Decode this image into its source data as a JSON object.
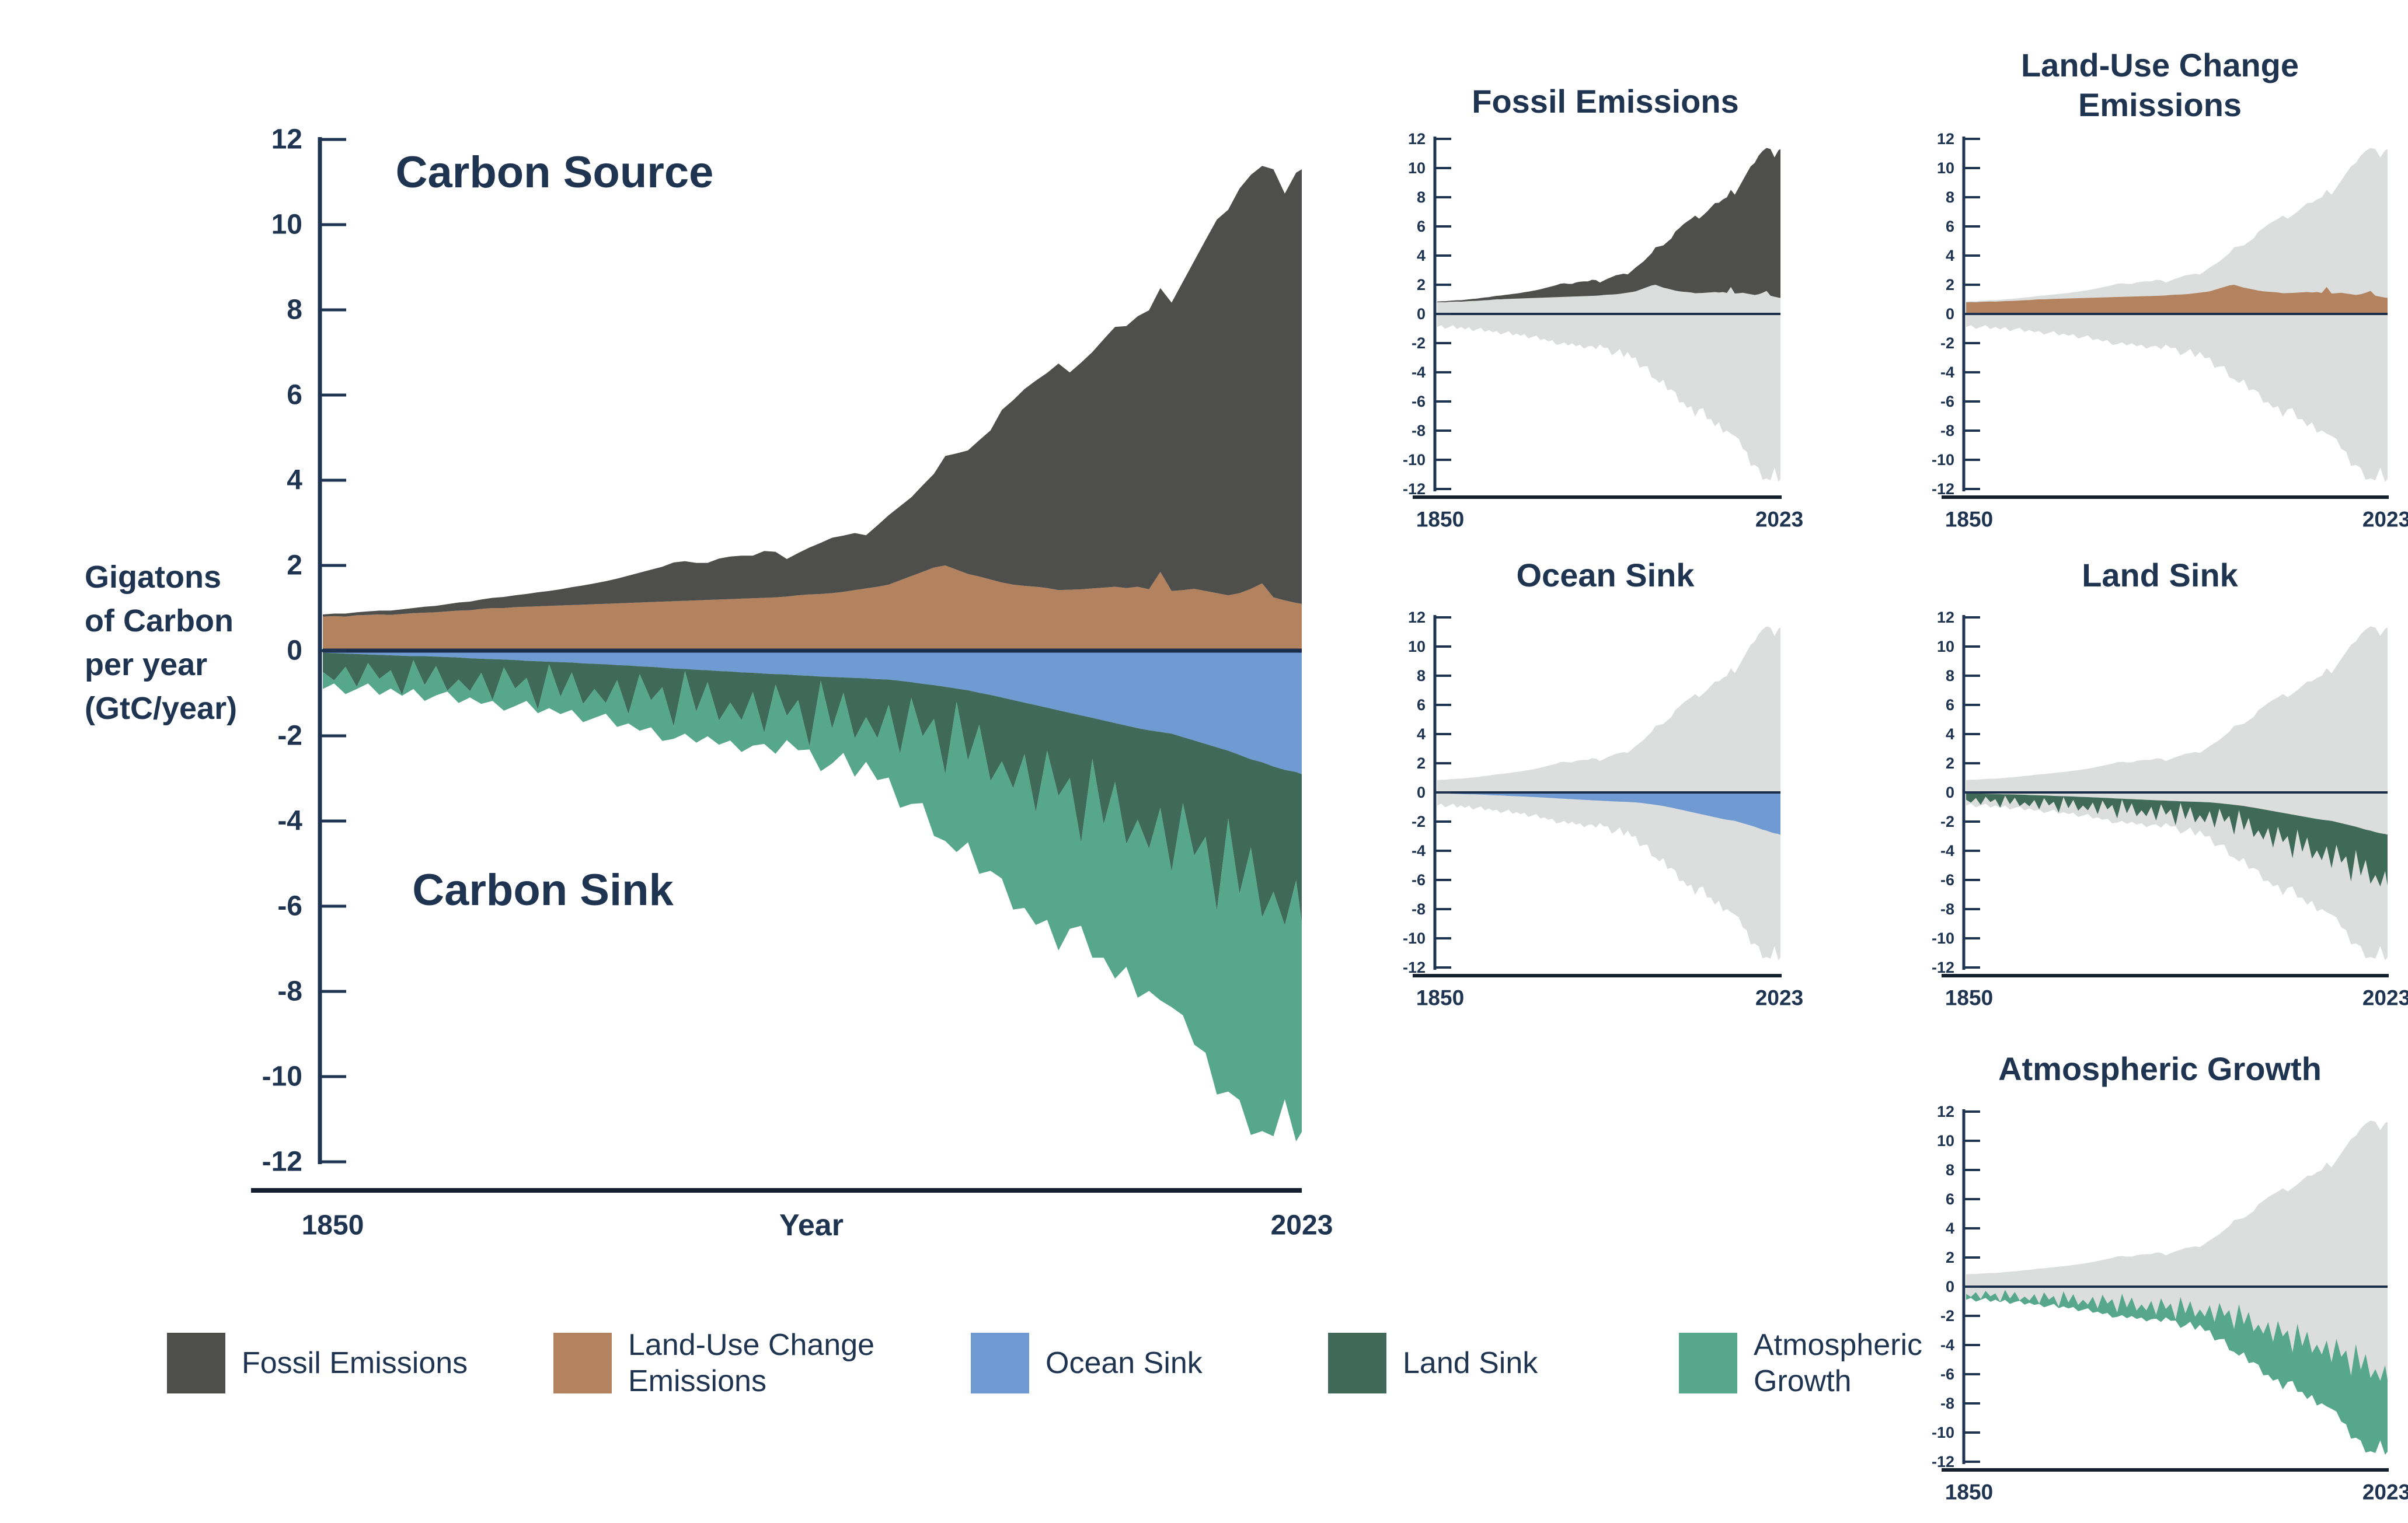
{
  "colors": {
    "navy": "#1e3450",
    "zero_line": "#1b2d4a",
    "x_axis": "#15202e",
    "muted_series": "#dcdddd",
    "background": "#ffffff",
    "band_label_text": "#ffffff"
  },
  "main_chart": {
    "source_label": "Carbon Source",
    "sink_label": "Carbon Sink",
    "y_axis_title_lines": [
      "Gigatons",
      "of Carbon",
      "per year",
      "(GtC/year)"
    ],
    "x_axis_label": "Year",
    "x_tick_labels": [
      "1850",
      "2023"
    ],
    "band_labels": {
      "fossil": "Fossil Emissions",
      "luc": "Land-Use Change Emissions",
      "ocean": "Ocean Sink",
      "land": "Land Sink",
      "atm": "Atmospheric Growth"
    }
  },
  "small_charts": [
    {
      "key": "fossil",
      "title": "Fossil Emissions"
    },
    {
      "key": "luc",
      "title": "Land-Use Change Emissions"
    },
    {
      "key": "ocean",
      "title": "Ocean Sink"
    },
    {
      "key": "land",
      "title": "Land Sink"
    },
    {
      "key": "atm",
      "title": "Atmospheric Growth"
    }
  ],
  "legend": {
    "items": [
      {
        "key": "fossil",
        "label": "Fossil Emissions",
        "color": "#4e4e4c"
      },
      {
        "key": "luc",
        "label": "Land-Use Change Emissions",
        "color": "#b3835f"
      },
      {
        "key": "ocean",
        "label": "Ocean Sink",
        "color": "#6f9ad2"
      },
      {
        "key": "land",
        "label": "Land Sink",
        "color": "#3f6a5a"
      },
      {
        "key": "atm",
        "label": "Atmospheric Growth",
        "color": "#57a78d"
      }
    ]
  },
  "chart_data": {
    "type": "area",
    "stacked": true,
    "xlabel": "Year",
    "ylabel": "Gigatons of Carbon per year (GtC/year)",
    "x_range": [
      1850,
      2023
    ],
    "y_range": [
      -12,
      12
    ],
    "y_ticks": [
      12,
      10,
      8,
      6,
      4,
      2,
      0,
      -2,
      -4,
      -6,
      -8,
      -10,
      -12
    ],
    "grid": false,
    "annotations": [
      "Carbon Source",
      "Carbon Sink"
    ],
    "x": [
      1850,
      1852,
      1854,
      1856,
      1858,
      1860,
      1862,
      1864,
      1866,
      1868,
      1870,
      1872,
      1874,
      1876,
      1878,
      1880,
      1882,
      1884,
      1886,
      1888,
      1890,
      1892,
      1894,
      1896,
      1898,
      1900,
      1902,
      1904,
      1906,
      1908,
      1910,
      1912,
      1914,
      1916,
      1918,
      1920,
      1922,
      1924,
      1926,
      1928,
      1930,
      1932,
      1934,
      1936,
      1938,
      1940,
      1942,
      1944,
      1946,
      1948,
      1950,
      1952,
      1954,
      1956,
      1958,
      1960,
      1962,
      1964,
      1966,
      1968,
      1970,
      1972,
      1974,
      1976,
      1978,
      1980,
      1982,
      1984,
      1986,
      1988,
      1990,
      1992,
      1994,
      1996,
      1998,
      2000,
      2002,
      2004,
      2006,
      2008,
      2010,
      2012,
      2014,
      2016,
      2018,
      2020,
      2022,
      2023
    ],
    "series": [
      {
        "key": "fossil",
        "name": "Fossil Emissions",
        "direction": "source",
        "color": "#4e4e4c",
        "values": [
          0.05,
          0.06,
          0.07,
          0.07,
          0.08,
          0.09,
          0.1,
          0.11,
          0.12,
          0.14,
          0.15,
          0.17,
          0.19,
          0.2,
          0.22,
          0.24,
          0.26,
          0.28,
          0.3,
          0.33,
          0.35,
          0.38,
          0.42,
          0.45,
          0.49,
          0.53,
          0.58,
          0.64,
          0.7,
          0.76,
          0.82,
          0.91,
          0.93,
          0.88,
          0.87,
          0.96,
          1.0,
          1.01,
          1.0,
          1.1,
          1.07,
          0.88,
          0.99,
          1.1,
          1.2,
          1.3,
          1.32,
          1.34,
          1.25,
          1.44,
          1.63,
          1.74,
          1.85,
          2.03,
          2.2,
          2.57,
          2.73,
          2.9,
          3.2,
          3.5,
          4.05,
          4.33,
          4.62,
          4.84,
          5.05,
          5.32,
          5.1,
          5.32,
          5.55,
          5.83,
          6.1,
          6.15,
          6.35,
          6.55,
          6.66,
          6.77,
          7.24,
          7.7,
          8.24,
          8.77,
          9.05,
          9.5,
          9.72,
          9.8,
          10.05,
          9.55,
          10.1,
          10.2
        ]
      },
      {
        "key": "luc",
        "name": "Land-Use Change Emissions",
        "direction": "source",
        "color": "#b3835f",
        "values": [
          0.8,
          0.81,
          0.8,
          0.83,
          0.84,
          0.85,
          0.84,
          0.86,
          0.88,
          0.89,
          0.9,
          0.92,
          0.94,
          0.95,
          0.98,
          1.0,
          1.0,
          1.02,
          1.03,
          1.04,
          1.05,
          1.06,
          1.07,
          1.08,
          1.09,
          1.1,
          1.11,
          1.12,
          1.13,
          1.14,
          1.15,
          1.16,
          1.17,
          1.18,
          1.19,
          1.2,
          1.21,
          1.22,
          1.23,
          1.24,
          1.25,
          1.27,
          1.3,
          1.32,
          1.33,
          1.35,
          1.38,
          1.42,
          1.46,
          1.5,
          1.55,
          1.65,
          1.75,
          1.85,
          1.95,
          2.0,
          1.9,
          1.8,
          1.74,
          1.67,
          1.6,
          1.55,
          1.52,
          1.5,
          1.47,
          1.42,
          1.43,
          1.44,
          1.46,
          1.48,
          1.5,
          1.47,
          1.5,
          1.44,
          1.85,
          1.4,
          1.42,
          1.45,
          1.4,
          1.35,
          1.3,
          1.35,
          1.45,
          1.58,
          1.25,
          1.18,
          1.12,
          1.1
        ]
      },
      {
        "key": "ocean",
        "name": "Ocean Sink",
        "direction": "sink",
        "color": "#6f9ad2",
        "values": [
          0.05,
          0.06,
          0.07,
          0.08,
          0.09,
          0.1,
          0.11,
          0.12,
          0.13,
          0.13,
          0.14,
          0.15,
          0.16,
          0.18,
          0.19,
          0.2,
          0.21,
          0.22,
          0.24,
          0.25,
          0.26,
          0.27,
          0.28,
          0.3,
          0.31,
          0.32,
          0.34,
          0.35,
          0.37,
          0.38,
          0.4,
          0.42,
          0.43,
          0.45,
          0.46,
          0.48,
          0.49,
          0.51,
          0.52,
          0.54,
          0.55,
          0.56,
          0.58,
          0.59,
          0.61,
          0.62,
          0.63,
          0.64,
          0.65,
          0.67,
          0.68,
          0.71,
          0.74,
          0.78,
          0.81,
          0.85,
          0.89,
          0.93,
          0.99,
          1.04,
          1.1,
          1.16,
          1.22,
          1.28,
          1.34,
          1.4,
          1.46,
          1.52,
          1.58,
          1.64,
          1.7,
          1.76,
          1.82,
          1.87,
          1.91,
          1.95,
          2.03,
          2.11,
          2.19,
          2.27,
          2.35,
          2.45,
          2.55,
          2.62,
          2.72,
          2.8,
          2.85,
          2.9
        ]
      },
      {
        "key": "land",
        "name": "Land Sink",
        "direction": "sink",
        "color": "#3f6a5a",
        "values": [
          0.45,
          0.64,
          0.31,
          0.77,
          0.2,
          0.56,
          0.35,
          0.92,
          0.09,
          0.68,
          0.22,
          0.79,
          0.52,
          0.77,
          0.33,
          0.96,
          0.18,
          0.67,
          0.4,
          1.13,
          0.06,
          0.81,
          0.23,
          0.95,
          0.59,
          0.91,
          0.35,
          1.14,
          0.18,
          0.78,
          0.46,
          1.36,
          0.05,
          0.98,
          0.28,
          1.16,
          0.73,
          1.12,
          0.45,
          1.39,
          0.25,
          0.97,
          0.58,
          1.66,
          0.1,
          1.21,
          0.36,
          1.42,
          0.91,
          1.38,
          0.59,
          1.71,
          0.37,
          1.23,
          0.79,
          2.05,
          0.31,
          1.65,
          0.75,
          2.02,
          1.5,
          2.07,
          1.21,
          2.51,
          1.01,
          2.01,
          1.53,
          2.99,
          0.96,
          2.44,
          1.38,
          2.78,
          2.15,
          2.78,
          1.78,
          3.24,
          1.55,
          2.7,
          2.18,
          3.84,
          1.59,
          3.26,
          2.07,
          3.64,
          2.94,
          3.65,
          2.54,
          3.49
        ]
      },
      {
        "key": "atm",
        "name": "Atmospheric Growth",
        "direction": "sink",
        "color": "#57a78d",
        "values": [
          0.4,
          0.07,
          0.64,
          0.05,
          0.48,
          0.38,
          0.43,
          0.02,
          0.68,
          0.37,
          0.69,
          0.02,
          0.55,
          0.15,
          0.73,
          0.02,
          1.02,
          0.41,
          0.54,
          0.09,
          1.03,
          0.41,
          0.88,
          0.43,
          0.68,
          0.25,
          1.1,
          0.22,
          1.33,
          0.64,
          1.26,
          0.29,
          1.47,
          0.73,
          1.27,
          0.57,
          0.89,
          0.75,
          1.26,
          0.26,
          1.62,
          0.57,
          1.18,
          0.07,
          2.12,
          0.82,
          1.41,
          0.9,
          1.05,
          0.99,
          1.71,
          1.27,
          2.49,
          1.57,
          2.75,
          1.57,
          3.53,
          1.92,
          3.5,
          2.11,
          2.75,
          2.85,
          3.61,
          2.65,
          3.97,
          3.63,
          3.54,
          1.95,
          4.67,
          3.13,
          4.62,
          2.88,
          4.18,
          3.34,
          4.52,
          3.18,
          4.98,
          4.44,
          5.07,
          4.31,
          6.41,
          4.84,
          6.75,
          5.02,
          5.74,
          4.08,
          6.13,
          4.91
        ]
      }
    ]
  }
}
